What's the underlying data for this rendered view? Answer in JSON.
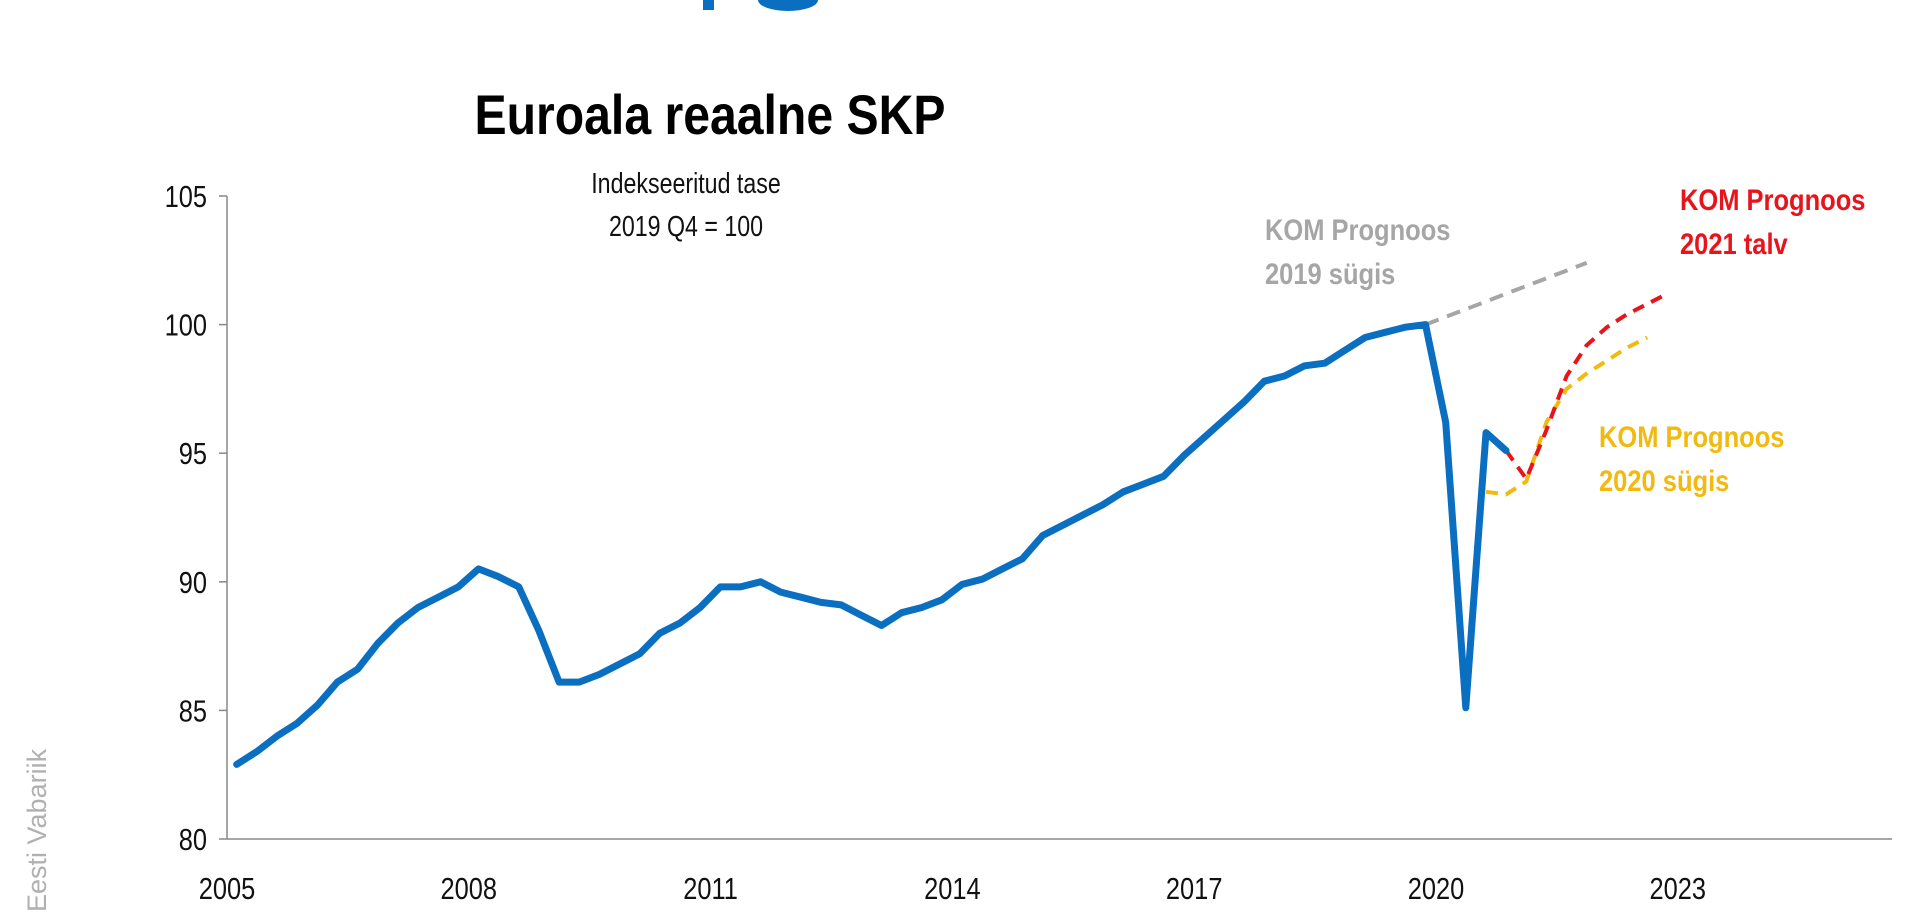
{
  "colors": {
    "actual": "#0b6fc1",
    "forecast_2019": "#a6a6a6",
    "forecast_2021": "#e8141c",
    "forecast_2020": "#f2b90f",
    "heading_fragment": "#0b6fc1",
    "watermark": "#b0b0b0"
  },
  "watermark": "Eesti Vabariik",
  "chart_data": {
    "type": "line",
    "title": "Euroala reaalne SKP",
    "subtitle": [
      "Indekseeritud tase",
      "2019 Q4 = 100"
    ],
    "xlabel": "",
    "ylabel": "",
    "ylim": [
      80,
      105
    ],
    "yticks": [
      80,
      85,
      90,
      95,
      100,
      105
    ],
    "xlim": [
      2005,
      2025
    ],
    "xticks": [
      2005,
      2008,
      2011,
      2014,
      2017,
      2020,
      2023
    ],
    "grid": false,
    "frequency": "quarterly",
    "series": [
      {
        "key": "actual",
        "start": "2005 Q1",
        "values": [
          82.9,
          83.4,
          84.0,
          84.5,
          85.2,
          86.1,
          86.6,
          87.6,
          88.4,
          89.0,
          89.4,
          89.8,
          90.5,
          90.2,
          89.8,
          88.1,
          86.1,
          86.1,
          86.4,
          86.8,
          87.2,
          88.0,
          88.4,
          89.0,
          89.8,
          89.8,
          90.0,
          89.6,
          89.4,
          89.2,
          89.1,
          88.7,
          88.3,
          88.8,
          89.0,
          89.3,
          89.9,
          90.1,
          90.5,
          90.9,
          91.8,
          92.2,
          92.6,
          93.0,
          93.5,
          93.8,
          94.1,
          94.9,
          95.6,
          96.3,
          97.0,
          97.8,
          98.0,
          98.4,
          98.5,
          99.0,
          99.5,
          99.7,
          99.9,
          100.0,
          96.2,
          85.1,
          95.8,
          95.1
        ]
      },
      {
        "key": "forecast_2019",
        "name": [
          "KOM Prognoos",
          "2019 sügis"
        ],
        "start": "2019 Q4",
        "values": [
          100.0,
          100.3,
          100.6,
          100.9,
          101.2,
          101.5,
          101.8,
          102.1,
          102.4
        ]
      },
      {
        "key": "forecast_2021",
        "name": [
          "KOM Prognoos",
          "2021 talv"
        ],
        "start": "2020 Q4",
        "values": [
          95.1,
          94.0,
          95.9,
          98.0,
          99.2,
          99.9,
          100.4,
          100.8,
          101.2
        ]
      },
      {
        "key": "forecast_2020",
        "name": [
          "KOM Prognoos",
          "2020 sügis"
        ],
        "start": "2020 Q3",
        "values": [
          93.5,
          93.4,
          93.9,
          96.2,
          97.5,
          98.1,
          98.6,
          99.1,
          99.5
        ]
      }
    ]
  }
}
